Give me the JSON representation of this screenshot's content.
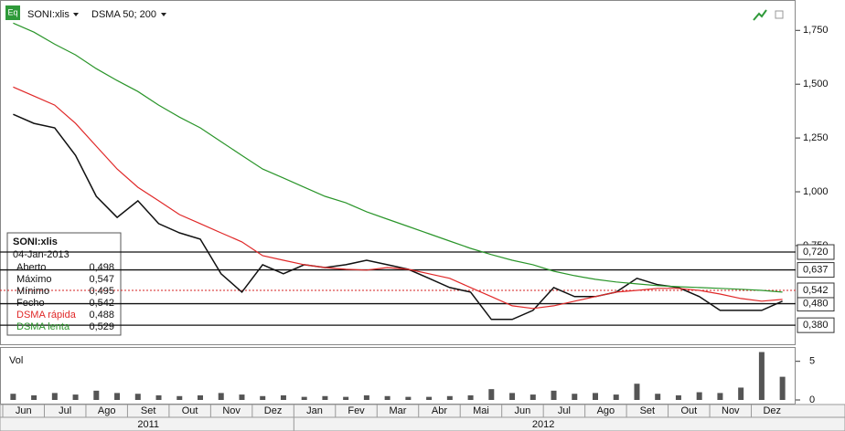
{
  "toolbar": {
    "icon": "Eq",
    "indicator": "DSMA 50; 200"
  },
  "info_box": {
    "date": "04-Jan-2013",
    "rows": [
      "Aberto",
      "Máximo",
      "Mínimo",
      "Fecho"
    ],
    "values": [
      "0,498",
      "0,547",
      "0,495",
      "0,542",
      "0,488",
      "0,529"
    ]
  },
  "chart_data": [
    {
      "type": "line",
      "months": [
        "Jun",
        "Jul",
        "Ago",
        "Set",
        "Out",
        "Nov",
        "Dez",
        "Jan",
        "Fev",
        "Mar",
        "Abr",
        "Mai",
        "Jun",
        "Jul",
        "Ago",
        "Set",
        "Out",
        "Nov",
        "Dez"
      ],
      "years": [
        "2011",
        "2012"
      ],
      "ylim": [
        0.3,
        1.87
      ],
      "yticks": [
        {
          "value": 1.75,
          "label": "1,750"
        },
        {
          "value": 1.5,
          "label": "1,500"
        },
        {
          "value": 1.25,
          "label": "1,250"
        },
        {
          "value": 1.0,
          "label": "1,000"
        },
        {
          "value": 0.75,
          "label": "0,750"
        }
      ],
      "levels": [
        {
          "value": 0.72,
          "label": "0,720"
        },
        {
          "value": 0.637,
          "label": "0,637"
        },
        {
          "value": 0.48,
          "label": "0,480"
        },
        {
          "value": 0.38,
          "label": "0,380"
        }
      ],
      "last": {
        "value": 0.542,
        "label": "0,542",
        "color": "#d42020"
      },
      "series": [
        {
          "name": "SONI:xlis",
          "color": "#111111",
          "values": [
            1.36,
            1.318,
            1.297,
            1.169,
            0.979,
            0.881,
            0.958,
            0.852,
            0.809,
            0.78,
            0.619,
            0.534,
            0.661,
            0.619,
            0.661,
            0.648,
            0.661,
            0.682,
            0.661,
            0.64,
            0.598,
            0.555,
            0.534,
            0.407,
            0.407,
            0.449,
            0.555,
            0.513,
            0.513,
            0.534,
            0.598,
            0.568,
            0.555,
            0.513,
            0.449,
            0.449,
            0.449,
            0.492
          ]
        },
        {
          "name": "DSMA rápida",
          "color": "#e02828",
          "values": [
            1.487,
            1.445,
            1.403,
            1.318,
            1.212,
            1.106,
            1.021,
            0.958,
            0.894,
            0.852,
            0.809,
            0.767,
            0.703,
            0.682,
            0.661,
            0.648,
            0.64,
            0.636,
            0.648,
            0.64,
            0.619,
            0.598,
            0.555,
            0.513,
            0.47,
            0.458,
            0.47,
            0.492,
            0.513,
            0.534,
            0.542,
            0.551,
            0.551,
            0.542,
            0.525,
            0.504,
            0.492,
            0.5
          ]
        },
        {
          "name": "DSMA lenta",
          "color": "#2a952a",
          "values": [
            1.784,
            1.742,
            1.686,
            1.636,
            1.572,
            1.517,
            1.466,
            1.403,
            1.347,
            1.297,
            1.233,
            1.169,
            1.106,
            1.064,
            1.021,
            0.979,
            0.949,
            0.907,
            0.873,
            0.839,
            0.805,
            0.771,
            0.737,
            0.708,
            0.682,
            0.661,
            0.631,
            0.61,
            0.593,
            0.581,
            0.572,
            0.564,
            0.559,
            0.555,
            0.551,
            0.547,
            0.542,
            0.534
          ]
        }
      ]
    },
    {
      "type": "bar",
      "title": "Vol",
      "color": "#555555",
      "ylim": [
        0,
        6.5
      ],
      "yticks": [
        0,
        5
      ],
      "values": [
        0.8,
        0.6,
        0.9,
        0.7,
        1.2,
        0.9,
        0.8,
        0.6,
        0.5,
        0.6,
        0.9,
        0.7,
        0.5,
        0.6,
        0.4,
        0.5,
        0.4,
        0.6,
        0.5,
        0.4,
        0.4,
        0.5,
        0.6,
        1.4,
        0.9,
        0.7,
        1.2,
        0.8,
        0.9,
        0.7,
        2.1,
        0.8,
        0.6,
        1.0,
        0.9,
        1.6,
        6.2,
        3.0
      ]
    }
  ]
}
